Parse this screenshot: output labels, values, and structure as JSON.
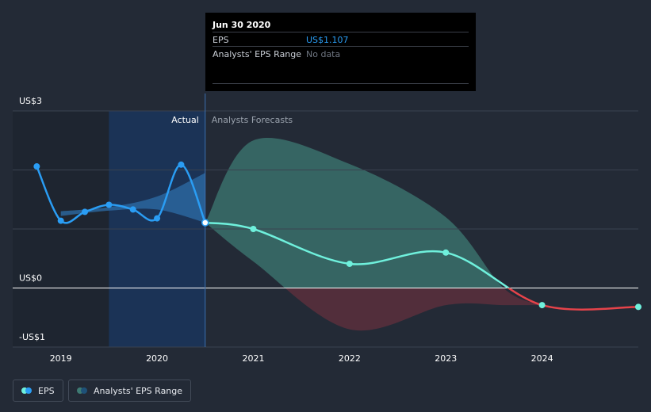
{
  "colors": {
    "background": "#232a36",
    "eps_line": "#2a9df4",
    "forecast_line": "#6ff0dc",
    "negative_line": "#e6434a",
    "range_band_positive": "#3e7a73",
    "range_band_negative": "#5a2f3c",
    "actual_band": "#1b3356",
    "gridline": "#3a4250",
    "zero_line": "#ffffff"
  },
  "tooltip": {
    "date": "Jun 30 2020",
    "eps_label": "EPS",
    "eps_value": "US$1.107",
    "range_label": "Analysts' EPS Range",
    "range_value": "No data"
  },
  "legend": {
    "eps_label": "EPS",
    "range_label": "Analysts' EPS Range",
    "eps_icon": "dual-dot-icon",
    "range_icon": "dual-dot-icon"
  },
  "chart_data": {
    "type": "line",
    "section_labels": {
      "actual": "Actual",
      "forecast": "Analysts Forecasts"
    },
    "y_ticks": [
      {
        "value": 3,
        "label": "US$3"
      },
      {
        "value": 0,
        "label": "US$0"
      },
      {
        "value": -1,
        "label": "-US$1"
      }
    ],
    "x_ticks": [
      {
        "value": 2019,
        "label": "2019"
      },
      {
        "value": 2020,
        "label": "2020"
      },
      {
        "value": 2021,
        "label": "2021"
      },
      {
        "value": 2022,
        "label": "2022"
      },
      {
        "value": 2023,
        "label": "2023"
      },
      {
        "value": 2024,
        "label": "2024"
      }
    ],
    "xlim": [
      2018.5,
      2025.0
    ],
    "ylim": [
      -1,
      3
    ],
    "actual_end": 2020.5,
    "actual_shade_start": 2019.5,
    "series": [
      {
        "name": "EPS",
        "kind": "actual",
        "points": [
          {
            "x": 2018.75,
            "y": 2.06
          },
          {
            "x": 2019.0,
            "y": 1.14
          },
          {
            "x": 2019.25,
            "y": 1.29
          },
          {
            "x": 2019.5,
            "y": 1.41
          },
          {
            "x": 2019.75,
            "y": 1.33
          },
          {
            "x": 2020.0,
            "y": 1.18
          },
          {
            "x": 2020.25,
            "y": 2.09
          },
          {
            "x": 2020.5,
            "y": 1.107
          }
        ]
      },
      {
        "name": "EPS",
        "kind": "forecast",
        "points": [
          {
            "x": 2020.5,
            "y": 1.107
          },
          {
            "x": 2021.0,
            "y": 1.0
          },
          {
            "x": 2022.0,
            "y": 0.41
          },
          {
            "x": 2023.0,
            "y": 0.6
          },
          {
            "x": 2024.0,
            "y": -0.29
          },
          {
            "x": 2025.0,
            "y": -0.32
          }
        ]
      }
    ],
    "range": {
      "name": "Analysts' EPS Range",
      "actual_band": {
        "x": [
          2019.0,
          2019.5,
          2020.0,
          2020.5
        ],
        "high": [
          1.3,
          1.37,
          1.55,
          1.95
        ],
        "low": [
          1.22,
          1.31,
          1.33,
          1.107
        ]
      },
      "forecast_band": {
        "x": [
          2020.5,
          2021.0,
          2022.0,
          2023.0,
          2023.6,
          2024.0
        ],
        "high": [
          1.107,
          2.5,
          2.1,
          1.2,
          0.0,
          -0.29
        ],
        "low": [
          1.107,
          0.45,
          -0.7,
          -0.29,
          -0.29,
          -0.29
        ]
      }
    }
  }
}
